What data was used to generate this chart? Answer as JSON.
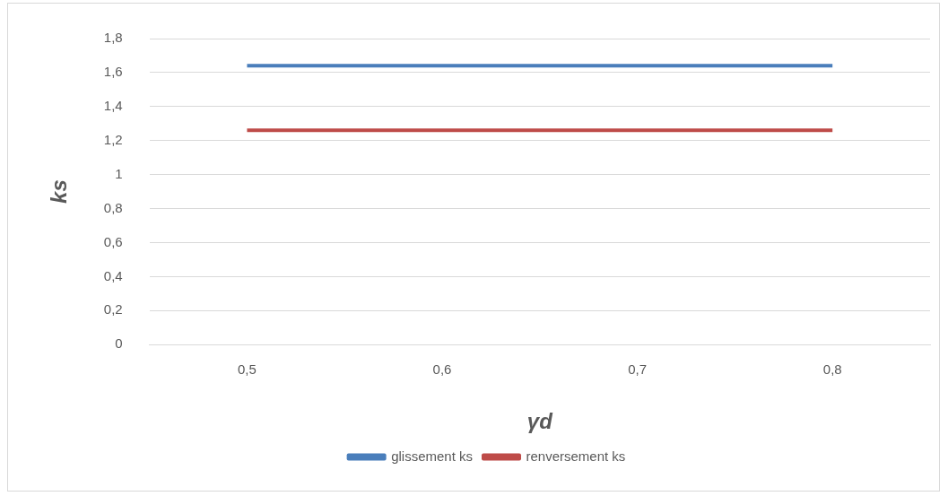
{
  "chart_data": {
    "type": "line",
    "xlabel": "γd",
    "ylabel": "ks",
    "categories": [
      "0,5",
      "0,6",
      "0,7",
      "0,8"
    ],
    "series": [
      {
        "name": "glissement ks",
        "color": "#4a7ebb",
        "values": [
          1.64,
          1.64,
          1.64,
          1.64
        ]
      },
      {
        "name": "renversement ks",
        "color": "#be4b48",
        "values": [
          1.26,
          1.26,
          1.26,
          1.26
        ]
      }
    ],
    "ylim": [
      0,
      1.8
    ],
    "yticks": [
      0,
      {
        "value": 0.2,
        "label": "0,2"
      },
      {
        "value": 0.4,
        "label": "0,4"
      },
      {
        "value": 0.6,
        "label": "0,6"
      },
      {
        "value": 0.8,
        "label": "0,8"
      },
      1,
      {
        "value": 1.2,
        "label": "1,2"
      },
      {
        "value": 1.4,
        "label": "1,4"
      },
      {
        "value": 1.6,
        "label": "1,6"
      },
      {
        "value": 1.8,
        "label": "1,8"
      }
    ],
    "grid": "y",
    "legend": "bottom",
    "marker": "none",
    "line_style": "solid"
  }
}
